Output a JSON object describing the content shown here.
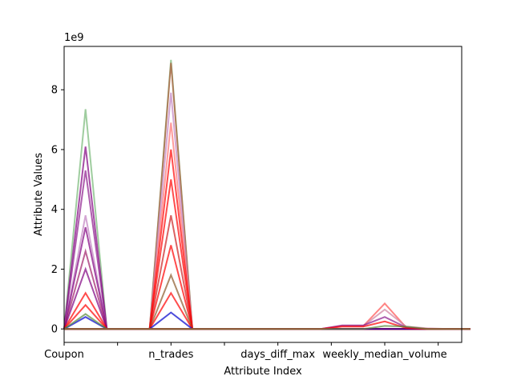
{
  "chart_data": {
    "type": "line",
    "title": "",
    "xlabel": "Attribute Index",
    "ylabel": "Attribute Values",
    "y_offset_label": "1e9",
    "attributes": [
      "Coupon",
      "",
      "",
      "",
      "n_trades",
      "",
      "",
      "",
      "days_diff_max",
      "",
      "",
      "",
      "weekly_median_volume",
      "",
      "",
      "",
      "",
      "",
      "",
      ""
    ],
    "x_tick_positions": [
      0,
      2.5,
      5,
      7.5,
      10,
      12.5,
      15,
      17.5
    ],
    "x_tick_labels": [
      "Coupon",
      "",
      "n_trades",
      "",
      "days_diff_max",
      "",
      "weekly_median_volume",
      ""
    ],
    "xlim": [
      0,
      18.6
    ],
    "yticks": [
      0,
      2,
      4,
      6,
      8
    ],
    "ylim": [
      -0.45,
      9.45
    ],
    "y_unit_multiplier": 1000000000,
    "grid": false,
    "legend": "none",
    "series": [
      {
        "color": "#76b876",
        "values": [
          0,
          7.35,
          0,
          0,
          0,
          0,
          0,
          0,
          0,
          0,
          0,
          0,
          0,
          0,
          0,
          0,
          0,
          0,
          0,
          0
        ]
      },
      {
        "color": "#800080",
        "values": [
          0,
          6.1,
          0,
          0,
          0,
          0,
          0,
          0,
          0,
          0,
          0,
          0,
          0,
          0,
          0,
          0,
          0,
          0,
          0,
          0
        ]
      },
      {
        "color": "#8b1a8b",
        "values": [
          0,
          5.3,
          0,
          0,
          0,
          0,
          0,
          0,
          0,
          0,
          0,
          0,
          0,
          0,
          0,
          0,
          0,
          0,
          0,
          0
        ]
      },
      {
        "color": "#c080c0",
        "values": [
          0,
          3.8,
          0,
          0,
          0,
          0,
          0,
          0,
          0,
          0,
          0,
          0,
          0,
          0,
          0,
          0,
          0,
          0,
          0,
          0
        ]
      },
      {
        "color": "#800080",
        "values": [
          0,
          3.4,
          0,
          0,
          0,
          0,
          0,
          0,
          0,
          0,
          0,
          0,
          0,
          0,
          0,
          0,
          0,
          0,
          0,
          0
        ]
      },
      {
        "color": "#a0206a",
        "values": [
          0,
          2.6,
          0,
          0,
          0,
          0,
          0,
          0,
          0,
          0,
          0,
          0,
          0,
          0,
          0,
          0,
          0,
          0,
          0,
          0
        ]
      },
      {
        "color": "#800080",
        "values": [
          0,
          2.0,
          0,
          0,
          0,
          0,
          0,
          0,
          0,
          0,
          0,
          0,
          0,
          0,
          0,
          0,
          0,
          0,
          0,
          0
        ]
      },
      {
        "color": "#ff0000",
        "values": [
          0,
          1.2,
          0,
          0,
          0,
          0,
          0,
          0,
          0,
          0,
          0,
          0,
          0,
          0,
          0,
          0,
          0,
          0,
          0,
          0
        ]
      },
      {
        "color": "#ff0000",
        "values": [
          0,
          0.8,
          0,
          0,
          0,
          0,
          0,
          0,
          0,
          0,
          0,
          0,
          0,
          0,
          0,
          0,
          0,
          0,
          0,
          0
        ]
      },
      {
        "color": "#0000cc",
        "values": [
          0,
          0.4,
          0,
          0,
          0,
          0,
          0,
          0,
          0,
          0,
          0,
          0,
          0,
          0,
          0,
          0,
          0,
          0,
          0,
          0
        ]
      },
      {
        "color": "#5a8a3a",
        "values": [
          0,
          0.5,
          0,
          0,
          0,
          0,
          0,
          0,
          0,
          0,
          0,
          0,
          0,
          0,
          0,
          0,
          0,
          0,
          0,
          0
        ]
      },
      {
        "color": "#76b876",
        "values": [
          0,
          0,
          0,
          0,
          0,
          9.0,
          0,
          0,
          0,
          0,
          0,
          0,
          0,
          0,
          0,
          0,
          0,
          0,
          0,
          0
        ]
      },
      {
        "color": "#b05a3a",
        "values": [
          0,
          0,
          0,
          0,
          0,
          8.9,
          0,
          0,
          0,
          0,
          0,
          0,
          0,
          0,
          0,
          0,
          0,
          0,
          0,
          0
        ]
      },
      {
        "color": "#c080c0",
        "values": [
          0,
          0,
          0,
          0,
          0,
          7.9,
          0,
          0,
          0,
          0,
          0,
          0,
          0,
          0,
          0,
          0,
          0,
          0,
          0,
          0
        ]
      },
      {
        "color": "#ff7070",
        "values": [
          0,
          0,
          0,
          0,
          0,
          6.9,
          0,
          0,
          0,
          0,
          0,
          0,
          0,
          0,
          0,
          0,
          0,
          0,
          0,
          0
        ]
      },
      {
        "color": "#ff0000",
        "values": [
          0,
          0,
          0,
          0,
          0,
          6.0,
          0,
          0,
          0,
          0,
          0,
          0,
          0,
          0,
          0,
          0,
          0,
          0,
          0,
          0
        ]
      },
      {
        "color": "#ff0000",
        "values": [
          0,
          0,
          0,
          0,
          0,
          5.0,
          0,
          0,
          0,
          0,
          0,
          0,
          0,
          0,
          0,
          0,
          0,
          0,
          0,
          0
        ]
      },
      {
        "color": "#cc2020",
        "values": [
          0,
          0,
          0,
          0,
          0,
          3.8,
          0,
          0,
          0,
          0,
          0,
          0,
          0,
          0,
          0,
          0,
          0,
          0,
          0,
          0
        ]
      },
      {
        "color": "#ff0000",
        "values": [
          0,
          0,
          0,
          0,
          0,
          2.8,
          0,
          0,
          0,
          0,
          0,
          0,
          0,
          0,
          0,
          0,
          0,
          0,
          0,
          0
        ]
      },
      {
        "color": "#8b5a2b",
        "values": [
          0,
          0,
          0,
          0,
          0,
          1.8,
          0,
          0,
          0,
          0,
          0,
          0,
          0,
          0,
          0,
          0,
          0,
          0,
          0,
          0
        ]
      },
      {
        "color": "#ff0000",
        "values": [
          0,
          0,
          0,
          0,
          0,
          1.2,
          0,
          0,
          0,
          0,
          0,
          0,
          0,
          0,
          0,
          0,
          0,
          0,
          0,
          0
        ]
      },
      {
        "color": "#0000cc",
        "values": [
          0,
          0,
          0,
          0,
          0,
          0.55,
          0,
          0,
          0,
          0,
          0,
          0,
          0,
          0,
          0,
          0,
          0,
          0,
          0,
          0
        ]
      },
      {
        "color": "#ff5050",
        "values": [
          0,
          0,
          0,
          0,
          0,
          0,
          0,
          0,
          0,
          0,
          0,
          0,
          0,
          0.1,
          0.1,
          0.85,
          0.05,
          0,
          0,
          0
        ]
      },
      {
        "color": "#d080a0",
        "values": [
          0,
          0,
          0,
          0,
          0,
          0,
          0,
          0,
          0,
          0,
          0,
          0,
          0,
          0.1,
          0.1,
          0.65,
          0.08,
          0.02,
          0,
          0
        ]
      },
      {
        "color": "#8b1a8b",
        "values": [
          0,
          0,
          0,
          0,
          0,
          0,
          0,
          0,
          0,
          0,
          0,
          0,
          0,
          0.12,
          0.12,
          0.4,
          0.05,
          0,
          0,
          0
        ]
      },
      {
        "color": "#ff0000",
        "values": [
          0,
          0,
          0,
          0,
          0,
          0,
          0,
          0,
          0,
          0,
          0,
          0,
          0,
          0.08,
          0.08,
          0.25,
          0.03,
          0,
          0,
          0
        ]
      },
      {
        "color": "#5a8a3a",
        "values": [
          0,
          0,
          0,
          0,
          0,
          0,
          0,
          0,
          0,
          0,
          0,
          0,
          0,
          0,
          0,
          0.1,
          0.08,
          0,
          0,
          0
        ]
      }
    ]
  }
}
